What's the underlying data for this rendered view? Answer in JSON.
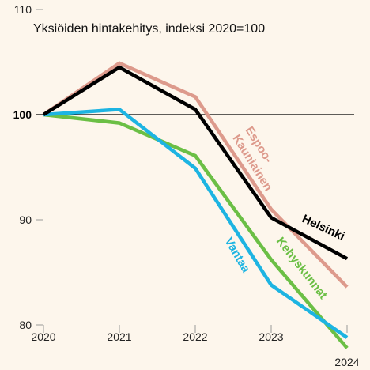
{
  "chart_data": {
    "type": "line",
    "title": "Yksiöiden hintakehitys, indeksi 2020=100",
    "xlabel": "",
    "ylabel": "",
    "x": [
      "2020",
      "2021",
      "2022",
      "2023",
      "2024"
    ],
    "ylim": [
      80,
      110
    ],
    "y_ticks": [
      "110",
      "100",
      "90",
      "80"
    ],
    "reference_value": 100,
    "grid": false,
    "legend": "inline labels on lines",
    "series": [
      {
        "name": "Espoo-Kauniainen",
        "label_lines": [
          "Espoo-",
          "Kauniainen"
        ],
        "color": "#dd9a8c",
        "values": [
          100,
          104.9,
          101.7,
          91.0,
          83.6
        ]
      },
      {
        "name": "Kehyskunnat",
        "label_lines": [
          "Kehyskunnat"
        ],
        "color": "#6bbf45",
        "values": [
          100,
          99.2,
          96.1,
          86.2,
          77.8
        ]
      },
      {
        "name": "Vantaa",
        "label_lines": [
          "Vantaa"
        ],
        "color": "#1db4e2",
        "values": [
          100,
          100.5,
          94.9,
          83.8,
          78.8
        ]
      },
      {
        "name": "Helsinki",
        "label_lines": [
          "Helsinki"
        ],
        "color": "#000000",
        "values": [
          100,
          104.5,
          100.5,
          90.2,
          86.3
        ]
      }
    ]
  }
}
